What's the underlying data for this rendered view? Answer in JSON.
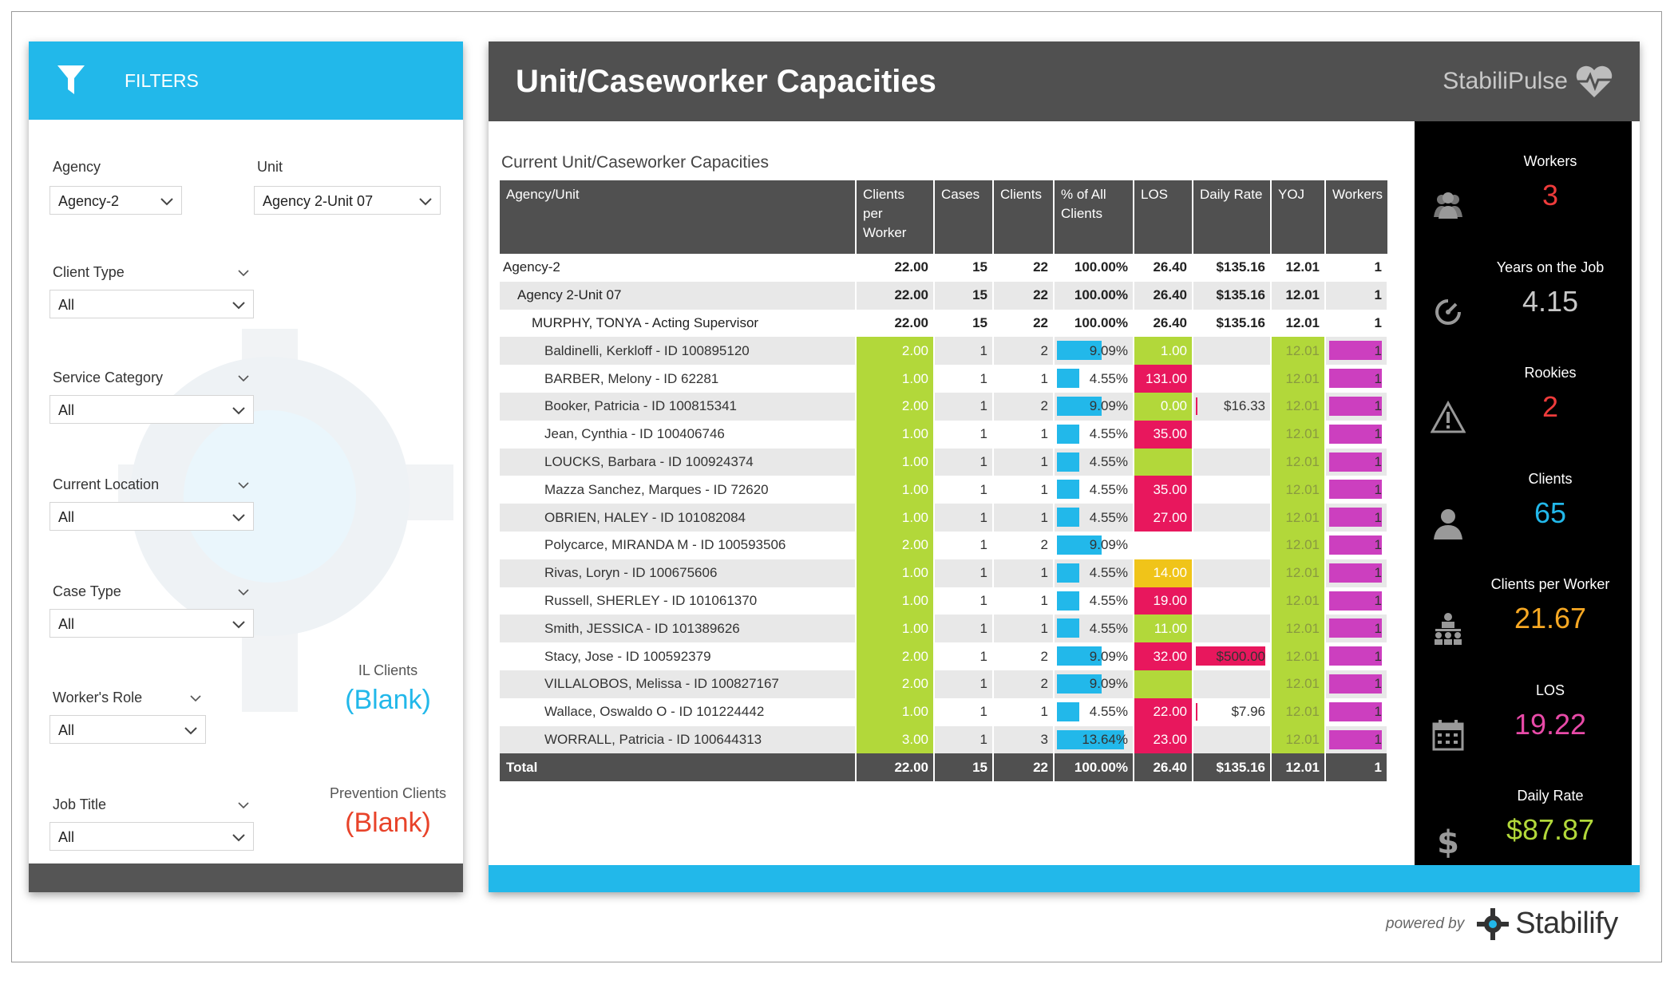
{
  "filters": {
    "header": "FILTERS",
    "agency": {
      "label": "Agency",
      "value": "Agency-2"
    },
    "unit": {
      "label": "Unit",
      "value": "Agency 2-Unit 07"
    },
    "client_type": {
      "label": "Client Type",
      "value": "All"
    },
    "service_category": {
      "label": "Service Category",
      "value": "All"
    },
    "current_location": {
      "label": "Current Location",
      "value": "All"
    },
    "case_type": {
      "label": "Case Type",
      "value": "All"
    },
    "workers_role": {
      "label": "Worker's Role",
      "value": "All"
    },
    "job_title": {
      "label": "Job Title",
      "value": "All"
    },
    "il_clients": {
      "label": "IL Clients",
      "value": "(Blank)"
    },
    "prevention_clients": {
      "label": "Prevention Clients",
      "value": "(Blank)"
    }
  },
  "report": {
    "title": "Unit/Caseworker Capacities",
    "brand": "StabiliPulse",
    "section_title": "Current Unit/Caseworker Capacities",
    "columns": [
      "Agency/Unit",
      "Clients per Worker",
      "Cases",
      "Clients",
      "% of All Clients",
      "LOS",
      "Daily Rate",
      "YOJ",
      "Workers"
    ],
    "summary_rows": [
      {
        "name": "Agency-2",
        "cpw": "22.00",
        "cases": "15",
        "clients": "22",
        "pct": "100.00%",
        "los": "26.40",
        "rate": "$135.16",
        "yoj": "12.01",
        "workers": "1"
      },
      {
        "name": "Agency 2-Unit 07",
        "cpw": "22.00",
        "cases": "15",
        "clients": "22",
        "pct": "100.00%",
        "los": "26.40",
        "rate": "$135.16",
        "yoj": "12.01",
        "workers": "1"
      },
      {
        "name": "MURPHY, TONYA - Acting Supervisor",
        "cpw": "22.00",
        "cases": "15",
        "clients": "22",
        "pct": "100.00%",
        "los": "26.40",
        "rate": "$135.16",
        "yoj": "12.01",
        "workers": "1"
      }
    ],
    "worker_rows": [
      {
        "name": "Baldinelli, Kerkloff - ID 100895120",
        "cpw": "2.00",
        "cases": "1",
        "clients": "2",
        "pct": "9.09%",
        "pct_value": 9.09,
        "los": "1.00",
        "los_color": "lime",
        "rate": "",
        "rate_style": "",
        "yoj": "12.01",
        "workers": "1"
      },
      {
        "name": "BARBER, Melony - ID 62281",
        "cpw": "1.00",
        "cases": "1",
        "clients": "1",
        "pct": "4.55%",
        "pct_value": 4.55,
        "los": "131.00",
        "los_color": "pink",
        "rate": "",
        "rate_style": "",
        "yoj": "12.01",
        "workers": "1"
      },
      {
        "name": "Booker, Patricia - ID 100815341",
        "cpw": "2.00",
        "cases": "1",
        "clients": "2",
        "pct": "9.09%",
        "pct_value": 9.09,
        "los": "0.00",
        "los_color": "lime",
        "rate": "$16.33",
        "rate_style": "line",
        "yoj": "12.01",
        "workers": "1"
      },
      {
        "name": "Jean, Cynthia - ID 100406746",
        "cpw": "1.00",
        "cases": "1",
        "clients": "1",
        "pct": "4.55%",
        "pct_value": 4.55,
        "los": "35.00",
        "los_color": "pink",
        "rate": "",
        "rate_style": "",
        "yoj": "12.01",
        "workers": "1"
      },
      {
        "name": "LOUCKS, Barbara - ID 100924374",
        "cpw": "1.00",
        "cases": "1",
        "clients": "1",
        "pct": "4.55%",
        "pct_value": 4.55,
        "los": "",
        "los_color": "lime",
        "rate": "",
        "rate_style": "",
        "yoj": "12.01",
        "workers": "1"
      },
      {
        "name": "Mazza Sanchez, Marques - ID 72620",
        "cpw": "1.00",
        "cases": "1",
        "clients": "1",
        "pct": "4.55%",
        "pct_value": 4.55,
        "los": "35.00",
        "los_color": "pink",
        "rate": "",
        "rate_style": "",
        "yoj": "12.01",
        "workers": "1"
      },
      {
        "name": "OBRIEN, HALEY - ID 101082084",
        "cpw": "1.00",
        "cases": "1",
        "clients": "1",
        "pct": "4.55%",
        "pct_value": 4.55,
        "los": "27.00",
        "los_color": "pink",
        "rate": "",
        "rate_style": "",
        "yoj": "12.01",
        "workers": "1"
      },
      {
        "name": "Polycarce, MIRANDA M - ID 100593506",
        "cpw": "2.00",
        "cases": "1",
        "clients": "2",
        "pct": "9.09%",
        "pct_value": 9.09,
        "los": "",
        "los_color": "",
        "rate": "",
        "rate_style": "",
        "yoj": "12.01",
        "workers": "1"
      },
      {
        "name": "Rivas, Loryn - ID 100675606",
        "cpw": "1.00",
        "cases": "1",
        "clients": "1",
        "pct": "4.55%",
        "pct_value": 4.55,
        "los": "14.00",
        "los_color": "gold",
        "rate": "",
        "rate_style": "",
        "yoj": "12.01",
        "workers": "1"
      },
      {
        "name": "Russell, SHERLEY - ID 101061370",
        "cpw": "1.00",
        "cases": "1",
        "clients": "1",
        "pct": "4.55%",
        "pct_value": 4.55,
        "los": "19.00",
        "los_color": "pink",
        "rate": "",
        "rate_style": "",
        "yoj": "12.01",
        "workers": "1"
      },
      {
        "name": "Smith, JESSICA - ID 101389626",
        "cpw": "1.00",
        "cases": "1",
        "clients": "1",
        "pct": "4.55%",
        "pct_value": 4.55,
        "los": "11.00",
        "los_color": "lime",
        "rate": "",
        "rate_style": "",
        "yoj": "12.01",
        "workers": "1"
      },
      {
        "name": "Stacy, Jose - ID 100592379",
        "cpw": "2.00",
        "cases": "1",
        "clients": "2",
        "pct": "9.09%",
        "pct_value": 9.09,
        "los": "32.00",
        "los_color": "pink",
        "rate": "$500.00",
        "rate_style": "bar",
        "yoj": "12.01",
        "workers": "1"
      },
      {
        "name": "VILLALOBOS, Melissa - ID 100827167",
        "cpw": "2.00",
        "cases": "1",
        "clients": "2",
        "pct": "9.09%",
        "pct_value": 9.09,
        "los": "",
        "los_color": "lime",
        "rate": "",
        "rate_style": "",
        "yoj": "12.01",
        "workers": "1"
      },
      {
        "name": "Wallace, Oswaldo O - ID 101224442",
        "cpw": "1.00",
        "cases": "1",
        "clients": "1",
        "pct": "4.55%",
        "pct_value": 4.55,
        "los": "22.00",
        "los_color": "pink",
        "rate": "$7.96",
        "rate_style": "line",
        "yoj": "12.01",
        "workers": "1"
      },
      {
        "name": "WORRALL, Patricia - ID 100644313",
        "cpw": "3.00",
        "cases": "1",
        "clients": "3",
        "pct": "13.64%",
        "pct_value": 13.64,
        "los": "23.00",
        "los_color": "pink",
        "rate": "",
        "rate_style": "",
        "yoj": "12.01",
        "workers": "1"
      }
    ],
    "total": {
      "name": "Total",
      "cpw": "22.00",
      "cases": "15",
      "clients": "22",
      "pct": "100.00%",
      "los": "26.40",
      "rate": "$135.16",
      "yoj": "12.01",
      "workers": "1"
    }
  },
  "kpis": [
    {
      "label": "Workers",
      "value": "3",
      "color": "#ee3b3b",
      "icon": "group-icon"
    },
    {
      "label": "Years on the Job",
      "value": "4.15",
      "color": "#c8c8c8",
      "icon": "speedometer-icon"
    },
    {
      "label": "Rookies",
      "value": "2",
      "color": "#ee3b3b",
      "icon": "warning-icon"
    },
    {
      "label": "Clients",
      "value": "65",
      "color": "#22b8ea",
      "icon": "person-icon"
    },
    {
      "label": "Clients per Worker",
      "value": "21.67",
      "color": "#f7a823",
      "icon": "hierarchy-icon"
    },
    {
      "label": "LOS",
      "value": "19.22",
      "color": "#e84aa8",
      "icon": "calendar-icon"
    },
    {
      "label": "Daily Rate",
      "value": "$87.87",
      "color": "#b2d83a",
      "icon": "dollar-icon"
    }
  ],
  "footer": {
    "powered_by": "powered by",
    "company": "Stabilify"
  },
  "colors": {
    "accent": "#22b8ea",
    "header_gray": "#505050",
    "lime": "#b2d83a",
    "pink": "#e8175d",
    "gold": "#f0c419",
    "magenta": "#cc3fbf"
  }
}
